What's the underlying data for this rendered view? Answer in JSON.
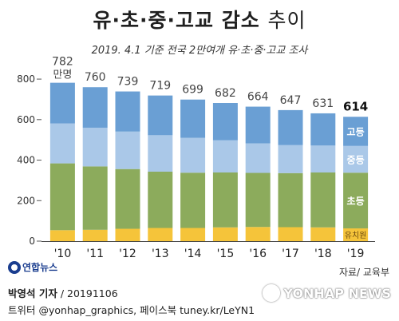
{
  "header": {
    "title_bold": "유·초·중·고교 감소",
    "title_light": "추이",
    "subtitle": "2019. 4.1 기준 전국 2만여개 유·초·중·고교 조사"
  },
  "chart_data": {
    "type": "bar",
    "stacked": true,
    "categories": [
      "'10",
      "'11",
      "'12",
      "'13",
      "'14",
      "'15",
      "'16",
      "'17",
      "'18",
      "'19"
    ],
    "totals": [
      782,
      760,
      739,
      719,
      699,
      682,
      664,
      647,
      631,
      614
    ],
    "total_unit": "만명",
    "series": [
      {
        "name": "유치원",
        "color": "#f5c43a",
        "values": [
          54,
          56,
          61,
          65,
          65,
          68,
          70,
          69,
          68,
          63
        ]
      },
      {
        "name": "초등",
        "color": "#8cab5c",
        "values": [
          330,
          313,
          295,
          278,
          273,
          271,
          267,
          267,
          271,
          275
        ]
      },
      {
        "name": "중등",
        "color": "#aac8e8",
        "values": [
          197,
          191,
          185,
          180,
          172,
          159,
          146,
          138,
          133,
          132
        ]
      },
      {
        "name": "고등",
        "color": "#6a9fd4",
        "values": [
          201,
          200,
          198,
          196,
          189,
          184,
          181,
          173,
          159,
          144
        ]
      }
    ],
    "yticks": [
      0,
      200,
      400,
      600,
      800
    ],
    "ylim": [
      0,
      820
    ],
    "grid": false,
    "legend": "inside-last-bar"
  },
  "footer": {
    "logo_text": "연합뉴스",
    "source": "자료/ 교육부",
    "byline_name": "박영석 기자",
    "byline_date": " / 20191106",
    "social": "트위터 @yonhap_graphics, 페이스북 tuney.kr/LeYN1",
    "watermark": "YONHAP NEWS"
  }
}
